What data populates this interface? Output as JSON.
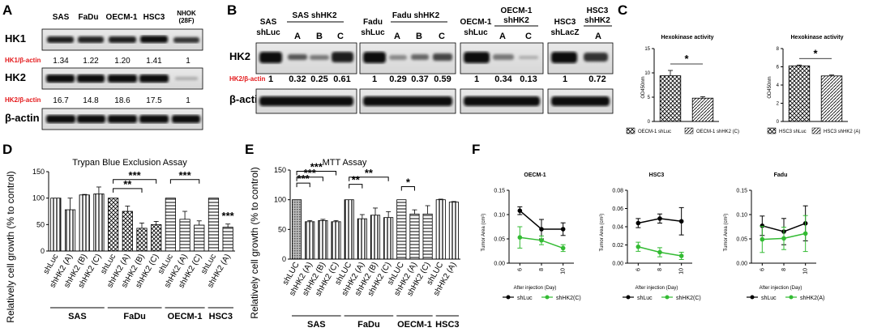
{
  "panels": {
    "A": "A",
    "B": "B",
    "C": "C",
    "D": "D",
    "E": "E",
    "F": "F"
  },
  "blotA": {
    "lanes": [
      "SAS",
      "FaDu",
      "OECM-1",
      "HSC3",
      "NHOK",
      "(28F)"
    ],
    "row1": "HK1",
    "ratio1_label": "HK1/β-actin",
    "ratio1": [
      "1.34",
      "1.22",
      "1.20",
      "1.41",
      "1"
    ],
    "row2": "HK2",
    "ratio2_label": "HK2/β-actin",
    "ratio2": [
      "16.7",
      "14.8",
      "18.6",
      "17.5",
      "1"
    ],
    "row3": "β-actin"
  },
  "blotB": {
    "g1_ctrl": [
      "SAS",
      "shLuc"
    ],
    "g1_title": "SAS shHK2",
    "g2_ctrl": [
      "Fadu",
      "shLuc"
    ],
    "g2_title": "Fadu shHK2",
    "g3_ctrl": [
      "OECM-1",
      "shLuc"
    ],
    "g3_title": [
      "OECM-1",
      "shHK2"
    ],
    "g4_ctrl": [
      "HSC3",
      "shLacZ"
    ],
    "g4_title": [
      "HSC3",
      "shHK2"
    ],
    "letters": [
      "A",
      "B",
      "C",
      "A",
      "B",
      "C",
      "A",
      "C",
      "A"
    ],
    "row1": "HK2",
    "ratio_label": "HK2/β-actin",
    "ratios": [
      "1",
      "0.32",
      "0.25",
      "0.61",
      "1",
      "0.29",
      "0.37",
      "0.59",
      "1",
      "0.34",
      "0.13",
      "1",
      "0.72"
    ],
    "row2": "β-actin"
  },
  "chart_data": [
    {
      "type": "bar",
      "title": "Hexokinase activity",
      "ylabel": "OD450nm",
      "ylim": [
        0,
        15
      ],
      "yticks": [
        "0",
        "5",
        "10",
        "15"
      ],
      "categories": [
        "OECM-1 shLuc",
        "OECM-1 shHK2 (C)"
      ],
      "values": [
        9.4,
        4.8
      ],
      "errors": [
        1.1,
        0.3
      ],
      "sig": "*"
    },
    {
      "type": "bar",
      "title": "Hexokinase activity",
      "ylabel": "OD450nm",
      "ylim": [
        0,
        8
      ],
      "yticks": [
        "0",
        "2",
        "4",
        "6",
        "8"
      ],
      "categories": [
        "HSC3 shLuc",
        "HSC3 shHK2 (A)"
      ],
      "values": [
        6.1,
        5.0
      ],
      "errors": [
        0.1,
        0.1
      ],
      "sig": "*"
    },
    {
      "type": "bar",
      "title": "Trypan Blue Exclusion Assay",
      "ylabel": "Relatively cell growth (% to control)",
      "ylim": [
        0,
        150
      ],
      "yticks": [
        "0",
        "50",
        "100",
        "150"
      ],
      "categories": [
        "shLuc",
        "shHK2 (A)",
        "shHK2 (B)",
        "shHK2 (C)",
        "shLuc",
        "shHK2 (A)",
        "shHK2 (B)",
        "shHK2 (C)",
        "shLuc",
        "shHK2 (A)",
        "shHK2 (C)",
        "shLuc",
        "shHK2 (A)"
      ],
      "values": [
        100,
        78,
        106,
        108,
        100,
        75,
        43,
        50,
        100,
        60,
        49,
        100,
        45
      ],
      "errors": [
        0,
        22,
        1,
        13,
        0,
        10,
        10,
        6,
        0,
        15,
        8,
        0,
        6
      ],
      "groups": [
        {
          "name": "SAS",
          "n": 4
        },
        {
          "name": "FaDu",
          "n": 4
        },
        {
          "name": "OECM-1",
          "n": 3
        },
        {
          "name": "HSC3",
          "n": 2
        }
      ],
      "annotations": [
        "***",
        "**",
        "***",
        "***"
      ]
    },
    {
      "type": "bar",
      "title": "MTT Assay",
      "ylabel": "Relatively cell growth (% to control)",
      "ylim": [
        0,
        150
      ],
      "yticks": [
        "0",
        "50",
        "100",
        "150"
      ],
      "categories": [
        "shLUC",
        "shHK2 (A)",
        "shHK2 (B)",
        "shHK2 (C)",
        "shLUC",
        "shHK2 (A)",
        "shHK2 (B)",
        "shHK2 (C)",
        "shLUC",
        "shHK2 (A)",
        "shHK2 (C)",
        "shLUC",
        "shHK2 (A)"
      ],
      "values": [
        100,
        63,
        65,
        63,
        100,
        68,
        74,
        70,
        100,
        76,
        76,
        100,
        96
      ],
      "errors": [
        0,
        2,
        2,
        2,
        0,
        7,
        12,
        10,
        0,
        7,
        14,
        1,
        1
      ],
      "groups": [
        {
          "name": "SAS",
          "n": 4
        },
        {
          "name": "FaDu",
          "n": 4
        },
        {
          "name": "OECM-1",
          "n": 3
        },
        {
          "name": "HSC3",
          "n": 2
        }
      ],
      "annotations": [
        "***",
        "***",
        "***",
        "**",
        "**",
        "*"
      ]
    },
    {
      "type": "line",
      "title": "OECM-1",
      "xlabel": "After injection (Day)",
      "ylabel": "Tumor Area (cm²)",
      "ylim": [
        0,
        0.15
      ],
      "x": [
        6,
        8,
        10
      ],
      "yticks": [
        "0.00",
        "0.05",
        "0.10",
        "0.15"
      ],
      "series": [
        {
          "name": "shLuc",
          "color": "#000000",
          "values": [
            0.108,
            0.07,
            0.07
          ],
          "errors": [
            0.008,
            0.02,
            0.013
          ]
        },
        {
          "name": "shHK2(C)",
          "color": "#33bb33",
          "values": [
            0.053,
            0.047,
            0.031
          ],
          "errors": [
            0.022,
            0.009,
            0.007
          ]
        }
      ]
    },
    {
      "type": "line",
      "title": "HSC3",
      "xlabel": "After injection (Day)",
      "ylabel": "Tumor Area (cm²)",
      "ylim": [
        0,
        0.08
      ],
      "x": [
        6,
        8,
        10
      ],
      "yticks": [
        "0.00",
        "0.02",
        "0.04",
        "0.06",
        "0.08"
      ],
      "series": [
        {
          "name": "shLuc",
          "color": "#000000",
          "values": [
            0.044,
            0.049,
            0.046
          ],
          "errors": [
            0.005,
            0.005,
            0.015
          ]
        },
        {
          "name": "shHK2(C)",
          "color": "#33bb33",
          "values": [
            0.018,
            0.012,
            0.008
          ],
          "errors": [
            0.005,
            0.005,
            0.004
          ]
        }
      ]
    },
    {
      "type": "line",
      "title": "Fadu",
      "xlabel": "After injection (Day)",
      "ylabel": "Tumor Area (cm²)",
      "ylim": [
        0,
        0.15
      ],
      "x": [
        6,
        8,
        10
      ],
      "yticks": [
        "0.00",
        "0.05",
        "0.10",
        "0.15"
      ],
      "series": [
        {
          "name": "shLuc",
          "color": "#000000",
          "values": [
            0.077,
            0.065,
            0.082
          ],
          "errors": [
            0.02,
            0.027,
            0.036
          ]
        },
        {
          "name": "shHK2(A)",
          "color": "#33bb33",
          "values": [
            0.049,
            0.051,
            0.061
          ],
          "errors": [
            0.027,
            0.023,
            0.037
          ]
        }
      ]
    }
  ]
}
